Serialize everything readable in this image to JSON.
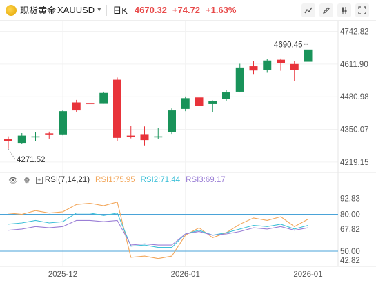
{
  "header": {
    "symbol_name": "现货黄金",
    "symbol": "XAUUSD",
    "period": "日K",
    "price": "4670.32",
    "change": "+74.72",
    "change_pct": "+1.63%"
  },
  "toolbar": {
    "icons": [
      "line-chart-icon",
      "edit-icon",
      "candle-settings-icon",
      "fullscreen-icon"
    ]
  },
  "indicator": {
    "name": "RSI(7,14,21)",
    "rsi1_label": "RSI1:75.95",
    "rsi2_label": "RSI2:71.44",
    "rsi3_label": "RSI3:69.17"
  },
  "colors": {
    "up": "#19935a",
    "down": "#e8333a",
    "rsi1": "#f2a65a",
    "rsi2": "#3ec0d8",
    "rsi3": "#9b7fd6",
    "level": "#4aa3d8",
    "price_text": "#e84a4a"
  },
  "chart_data": [
    {
      "type": "candlestick",
      "y_ticks": [
        "4742.82",
        "4611.90",
        "4480.98",
        "4350.07",
        "4219.15"
      ],
      "y_tick_values": [
        4742.82,
        4611.9,
        4480.98,
        4350.07,
        4219.15
      ],
      "ylim": [
        4205,
        4758
      ],
      "x_ticks": [
        "2025-12",
        "2026-01",
        "2026-01"
      ],
      "x_tick_index": [
        4,
        13,
        22
      ],
      "annotations": {
        "high_label": "4690.45",
        "high_value": 4690.45,
        "low_label": "4271.52",
        "low_value": 4271.52
      },
      "candles": [
        {
          "o": 4310,
          "h": 4322,
          "l": 4272,
          "c": 4303
        },
        {
          "o": 4296,
          "h": 4335,
          "l": 4293,
          "c": 4325
        },
        {
          "o": 4319,
          "h": 4338,
          "l": 4304,
          "c": 4322
        },
        {
          "o": 4334,
          "h": 4341,
          "l": 4313,
          "c": 4332
        },
        {
          "o": 4330,
          "h": 4428,
          "l": 4326,
          "c": 4423
        },
        {
          "o": 4458,
          "h": 4468,
          "l": 4420,
          "c": 4426
        },
        {
          "o": 4456,
          "h": 4470,
          "l": 4434,
          "c": 4451
        },
        {
          "o": 4455,
          "h": 4501,
          "l": 4455,
          "c": 4496
        },
        {
          "o": 4549,
          "h": 4558,
          "l": 4303,
          "c": 4316
        },
        {
          "o": 4325,
          "h": 4364,
          "l": 4314,
          "c": 4323
        },
        {
          "o": 4331,
          "h": 4362,
          "l": 4286,
          "c": 4307
        },
        {
          "o": 4318,
          "h": 4355,
          "l": 4312,
          "c": 4322
        },
        {
          "o": 4340,
          "h": 4434,
          "l": 4332,
          "c": 4426
        },
        {
          "o": 4432,
          "h": 4482,
          "l": 4423,
          "c": 4475
        },
        {
          "o": 4478,
          "h": 4486,
          "l": 4421,
          "c": 4445
        },
        {
          "o": 4454,
          "h": 4466,
          "l": 4418,
          "c": 4463
        },
        {
          "o": 4471,
          "h": 4508,
          "l": 4464,
          "c": 4498
        },
        {
          "o": 4501,
          "h": 4613,
          "l": 4498,
          "c": 4598
        },
        {
          "o": 4603,
          "h": 4625,
          "l": 4572,
          "c": 4586
        },
        {
          "o": 4589,
          "h": 4632,
          "l": 4577,
          "c": 4626
        },
        {
          "o": 4629,
          "h": 4634,
          "l": 4585,
          "c": 4616
        },
        {
          "o": 4612,
          "h": 4624,
          "l": 4545,
          "c": 4589
        },
        {
          "o": 4621,
          "h": 4690,
          "l": 4615,
          "c": 4670
        }
      ]
    },
    {
      "type": "line",
      "title": "RSI(7,14,21)",
      "y_ticks": [
        "92.83",
        "80.00",
        "67.82",
        "50.00",
        "42.82"
      ],
      "y_tick_values": [
        92.83,
        80.0,
        67.82,
        50.0,
        42.82
      ],
      "ylim": [
        41,
        96
      ],
      "levels": [
        80,
        50
      ],
      "series": [
        {
          "name": "RSI1",
          "values": [
            81,
            80,
            83,
            81,
            82,
            88,
            89,
            87,
            90,
            45,
            46,
            44,
            46,
            63,
            69,
            61,
            65,
            72,
            77,
            75,
            78,
            70,
            76
          ]
        },
        {
          "name": "RSI2",
          "values": [
            72,
            73,
            75,
            73,
            74,
            81,
            81,
            79,
            81,
            54,
            55,
            53,
            53,
            64,
            67,
            63,
            65,
            68,
            71,
            70,
            72,
            68,
            71
          ]
        },
        {
          "name": "RSI3",
          "values": [
            67,
            68,
            70,
            69,
            70,
            75,
            75,
            74,
            75,
            55,
            56,
            55,
            55,
            64,
            66,
            63,
            64,
            66,
            69,
            68,
            70,
            67,
            69
          ]
        }
      ]
    }
  ]
}
